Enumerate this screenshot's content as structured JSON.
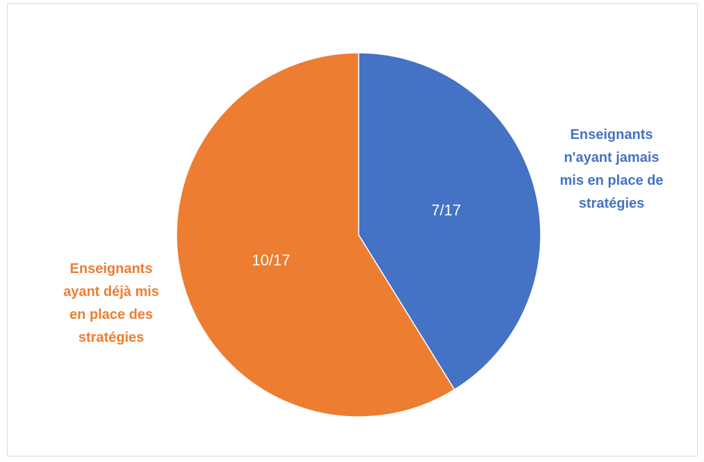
{
  "chart_data": {
    "type": "pie",
    "title": "",
    "slices": [
      {
        "value": 7,
        "data_label": "7/17",
        "category_lines": [
          "Enseignants",
          "n'ayant jamais",
          "mis en place de",
          "stratégies"
        ],
        "color": "#4472C4"
      },
      {
        "value": 10,
        "data_label": "10/17",
        "category_lines": [
          "Enseignants",
          "ayant déjà mis",
          "en place des",
          "stratégies"
        ],
        "color": "#ED7D31"
      }
    ],
    "total": 17,
    "start_angle_deg": 0,
    "direction": "clockwise",
    "legend": "none"
  }
}
